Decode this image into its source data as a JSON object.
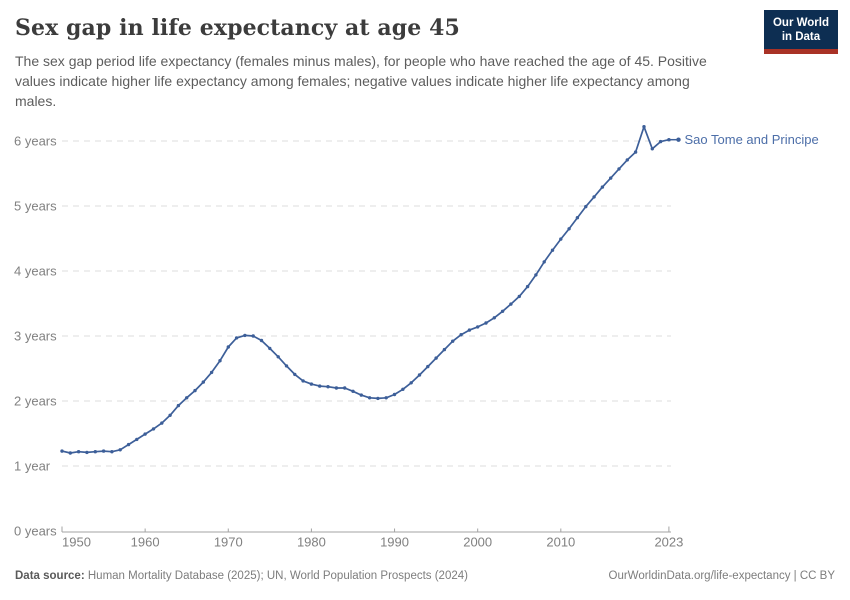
{
  "header": {
    "title": "Sex gap in life expectancy at age 45",
    "subtitle": "The sex gap period life expectancy (females minus males), for people who have reached the age of 45. Positive values indicate higher life expectancy among females; negative values indicate higher life expectancy among males.",
    "logo": {
      "line1": "Our World",
      "line2": "in Data"
    }
  },
  "chart_data": {
    "type": "line",
    "title": "Sex gap in life expectancy at age 45",
    "xlabel": "",
    "ylabel": "years",
    "xlim": [
      1950,
      2023
    ],
    "ylim": [
      0,
      6.3
    ],
    "grid": "horizontal-dashed",
    "legend_position": "line-end-label",
    "x_ticks": [
      1950,
      1960,
      1970,
      1980,
      1990,
      2000,
      2010,
      2023
    ],
    "y_ticks": [
      {
        "value": 0,
        "label": "0 years"
      },
      {
        "value": 1,
        "label": "1 year"
      },
      {
        "value": 2,
        "label": "2 years"
      },
      {
        "value": 3,
        "label": "3 years"
      },
      {
        "value": 4,
        "label": "4 years"
      },
      {
        "value": 5,
        "label": "5 years"
      },
      {
        "value": 6,
        "label": "6 years"
      }
    ],
    "series": [
      {
        "name": "Sao Tome and Principe",
        "x": [
          1950,
          1951,
          1952,
          1953,
          1954,
          1955,
          1956,
          1957,
          1958,
          1959,
          1960,
          1961,
          1962,
          1963,
          1964,
          1965,
          1966,
          1967,
          1968,
          1969,
          1970,
          1971,
          1972,
          1973,
          1974,
          1975,
          1976,
          1977,
          1978,
          1979,
          1980,
          1981,
          1982,
          1983,
          1984,
          1985,
          1986,
          1987,
          1988,
          1989,
          1990,
          1991,
          1992,
          1993,
          1994,
          1995,
          1996,
          1997,
          1998,
          1999,
          2000,
          2001,
          2002,
          2003,
          2004,
          2005,
          2006,
          2007,
          2008,
          2009,
          2010,
          2011,
          2012,
          2013,
          2014,
          2015,
          2016,
          2017,
          2018,
          2019,
          2020,
          2021,
          2022,
          2023
        ],
        "values": [
          1.23,
          1.2,
          1.22,
          1.21,
          1.22,
          1.23,
          1.22,
          1.25,
          1.33,
          1.41,
          1.49,
          1.57,
          1.66,
          1.78,
          1.93,
          2.05,
          2.16,
          2.29,
          2.44,
          2.62,
          2.83,
          2.97,
          3.01,
          3.0,
          2.93,
          2.81,
          2.68,
          2.54,
          2.41,
          2.31,
          2.26,
          2.23,
          2.22,
          2.2,
          2.2,
          2.15,
          2.09,
          2.05,
          2.04,
          2.05,
          2.1,
          2.18,
          2.28,
          2.4,
          2.53,
          2.66,
          2.79,
          2.92,
          3.02,
          3.09,
          3.14,
          3.2,
          3.28,
          3.38,
          3.49,
          3.61,
          3.76,
          3.94,
          4.14,
          4.32,
          4.49,
          4.65,
          4.82,
          4.99,
          5.14,
          5.29,
          5.43,
          5.57,
          5.71,
          5.83,
          6.22,
          5.88,
          5.99,
          6.02
        ]
      }
    ]
  },
  "colors": {
    "line": "#3d5f99",
    "series_label": "#4c6ea8",
    "gridline": "#dedede",
    "axis_line": "#a3a3a3",
    "axis_text": "#818181",
    "logo_bg": "#0d2e52",
    "logo_red": "#a93226"
  },
  "footer": {
    "data_source_label": "Data source:",
    "data_source": " Human Mortality Database (2025); UN, World Population Prospects (2024)",
    "right": "OurWorldinData.org/life-expectancy | CC BY"
  }
}
